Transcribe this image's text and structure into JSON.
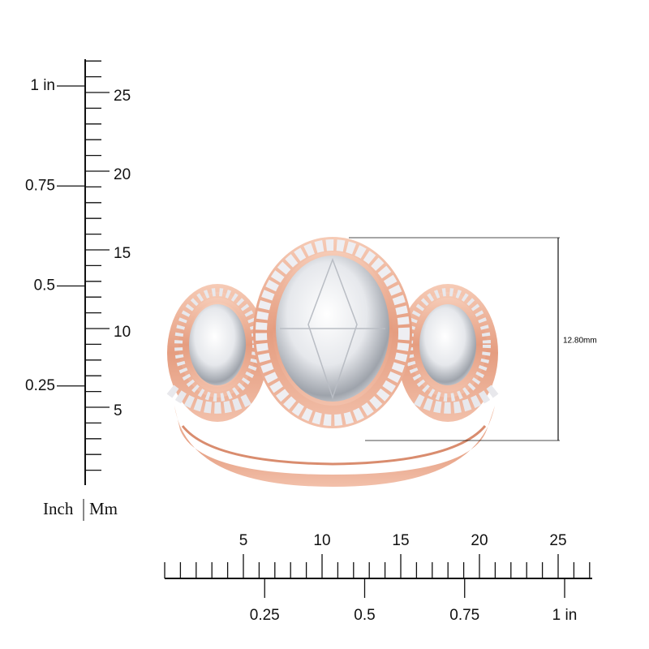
{
  "ruler_vertical": {
    "inch_labels": [
      "1 in",
      "0.75",
      "0.5",
      "0.25"
    ],
    "mm_labels": [
      "25",
      "20",
      "15",
      "10",
      "5"
    ]
  },
  "ruler_horizontal": {
    "mm_labels": [
      "5",
      "10",
      "15",
      "20",
      "25"
    ],
    "inch_labels": [
      "0.25",
      "0.5",
      "0.75",
      "1 in"
    ]
  },
  "unit_legend": {
    "inch": "Inch",
    "mm": "Mm"
  },
  "dimension": {
    "label": "12.80mm"
  }
}
